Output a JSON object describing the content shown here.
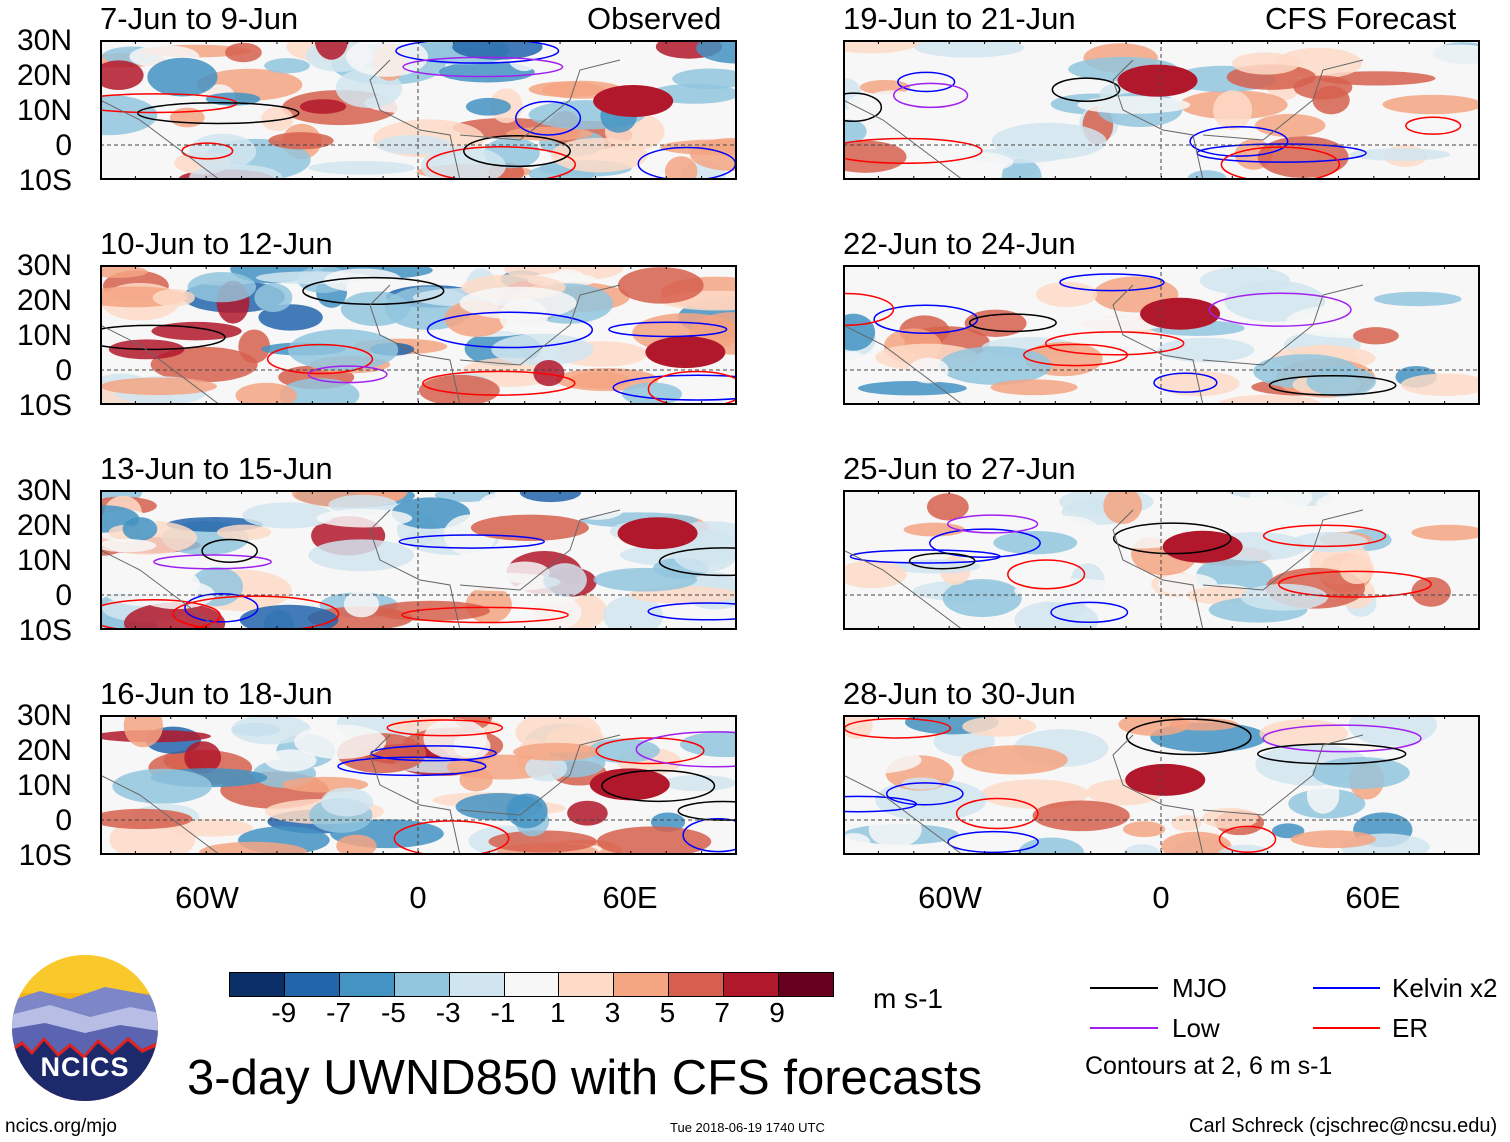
{
  "header": {
    "left": "Observed",
    "right": "CFS Forecast"
  },
  "panels": {
    "left": [
      {
        "title": "7-Jun to 9-Jun"
      },
      {
        "title": "10-Jun to 12-Jun"
      },
      {
        "title": "13-Jun to 15-Jun"
      },
      {
        "title": "16-Jun to 18-Jun"
      }
    ],
    "right": [
      {
        "title": "19-Jun to 21-Jun"
      },
      {
        "title": "22-Jun to 24-Jun"
      },
      {
        "title": "25-Jun to 27-Jun"
      },
      {
        "title": "28-Jun to 30-Jun"
      }
    ]
  },
  "axes": {
    "lat_labels": [
      "30N",
      "20N",
      "10N",
      "0",
      "10S"
    ],
    "lon_labels": [
      "60W",
      "0",
      "60E"
    ],
    "lat_range": [
      -10,
      30
    ],
    "lon_range": [
      -90,
      90
    ]
  },
  "colorbar": {
    "labels": [
      "-9",
      "-7",
      "-5",
      "-3",
      "-1",
      "1",
      "3",
      "5",
      "7",
      "9"
    ],
    "colors": [
      "#0b3068",
      "#2265ab",
      "#4393c3",
      "#92c5de",
      "#d1e5f0",
      "#f7f7f7",
      "#fddbc7",
      "#f4a582",
      "#d6604d",
      "#b2182b",
      "#67001f"
    ],
    "units": "m s-1"
  },
  "legend": {
    "items": [
      {
        "label": "MJO",
        "color": "#000000"
      },
      {
        "label": "Kelvin x2",
        "color": "#0000ff"
      },
      {
        "label": "Low",
        "color": "#a020f0"
      },
      {
        "label": "ER",
        "color": "#ff0000"
      }
    ],
    "note": "Contours at 2, 6 m s-1"
  },
  "logo": {
    "text": "NCICS"
  },
  "title": "3-day UWND850 with CFS forecasts",
  "footer": {
    "url": "ncics.org/mjo",
    "timestamp": "Tue 2018-06-19 1740 UTC",
    "credit": "Carl Schreck (cjschrec@ncsu.edu)"
  }
}
